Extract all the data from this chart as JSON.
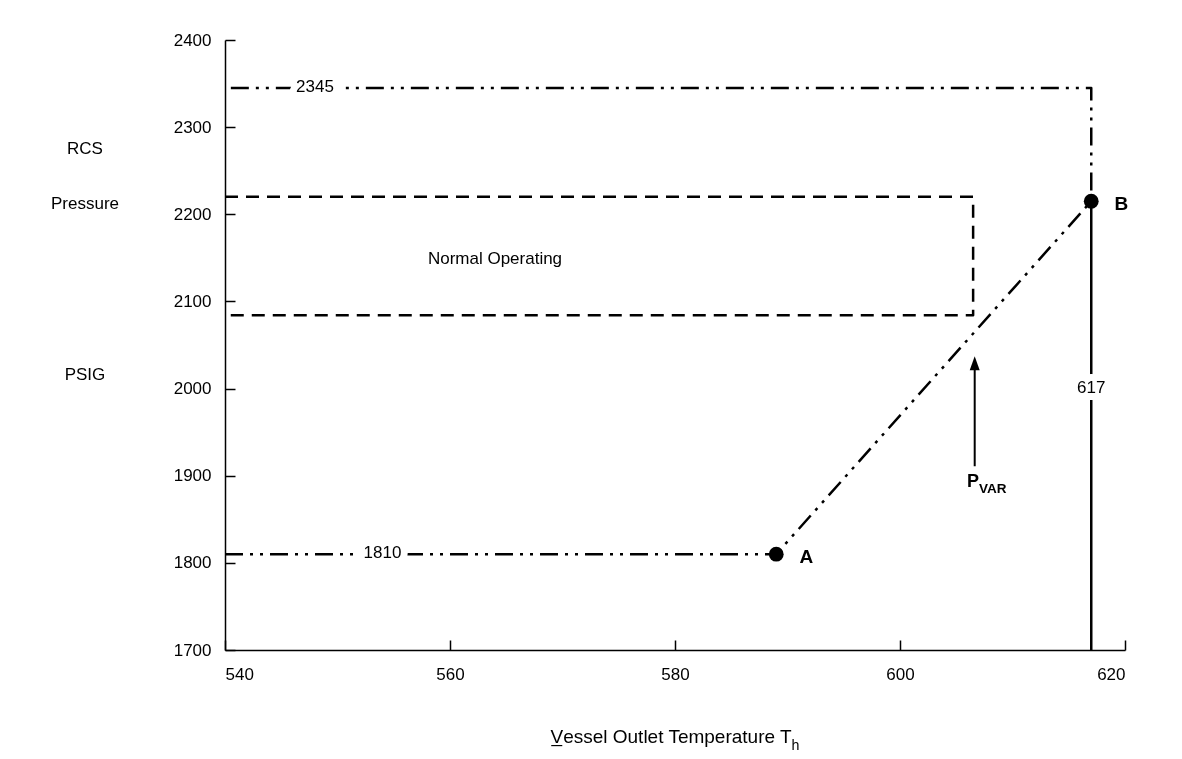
{
  "chart_data": {
    "type": "line",
    "xlabel": "V̲essel Outlet Temperature T$_{h}$",
    "ylabel": "RCS Pressure PSIG",
    "xlim": [
      540,
      620
    ],
    "ylim": [
      1700,
      2400
    ],
    "xticks": [
      540,
      560,
      580,
      600,
      620
    ],
    "yticks": [
      1700,
      1800,
      1900,
      2000,
      2100,
      2200,
      2300,
      2400
    ],
    "grid": false,
    "series": [
      {
        "color": "#000000",
        "line_style": "dashdot",
        "marker": "none",
        "x": [
          540,
          589,
          617,
          617,
          540
        ],
        "values": [
          1810,
          1810,
          2215,
          2345,
          2345
        ]
      },
      {
        "color": "#000000",
        "line_style": "dashed",
        "marker": "none",
        "x": [
          540,
          606.5,
          606.5,
          540
        ],
        "values": [
          2220,
          2220,
          2084,
          2084
        ]
      },
      {
        "color": "#000000",
        "line_style": "solid",
        "marker": "none",
        "x": [
          617,
          617
        ],
        "values": [
          1700,
          2215
        ]
      },
      {
        "type": "scatter",
        "color": "#000000",
        "marker": "circle",
        "x": [
          589,
          617
        ],
        "values": [
          1810,
          2215
        ]
      }
    ],
    "annotations": [
      {
        "text": "2345",
        "x": 548,
        "y": 2345
      },
      {
        "text": "1810",
        "x": 554,
        "y": 1810
      },
      {
        "text": "617",
        "x": 617,
        "y": 2000
      },
      {
        "text": "A",
        "x": 589,
        "y": 1810
      },
      {
        "text": "B",
        "x": 617,
        "y": 2215
      },
      "Normal Operating",
      "P$_{VAR}$"
    ]
  }
}
